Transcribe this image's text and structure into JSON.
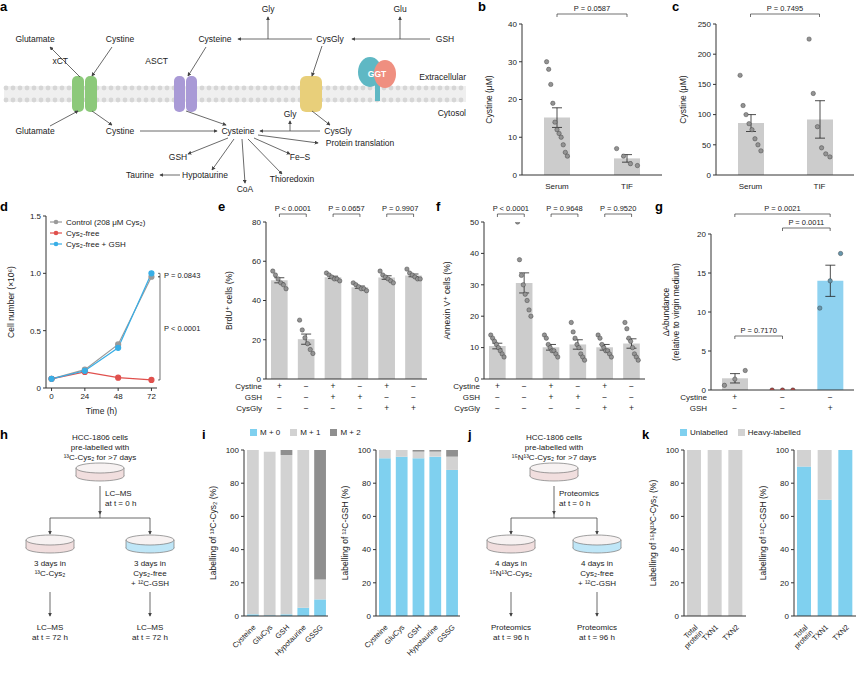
{
  "panel_letters": [
    "a",
    "b",
    "c",
    "d",
    "e",
    "f",
    "g",
    "h",
    "i",
    "j",
    "k"
  ],
  "diagrams": {
    "a": {
      "compartments": [
        "Extracellular",
        "Cytosol"
      ],
      "labels": [
        "Glutamate",
        "Cystine",
        "xCT",
        "Glutamate",
        "Cystine",
        "Cysteine",
        "ASCT",
        "Gly",
        "CysGly",
        "Glu",
        "GSH",
        "GGT",
        "Gly",
        "CysGly",
        "Cysteine",
        "GSH",
        "Hypotaurine",
        "Taurine",
        "CoA",
        "Thioredoxin",
        "Fe–S",
        "Protein translation"
      ]
    },
    "h": {
      "start": [
        "HCC-1806 cells",
        "pre-labelled with",
        "¹³C-Cys₂ for >7 days"
      ],
      "t0": [
        "LC–MS",
        "at t = 0 h"
      ],
      "left": [
        "3 days in",
        "¹³C-Cys₂"
      ],
      "right": [
        "3 days in",
        "Cys₂-free",
        "+ ¹²C-GSH"
      ],
      "end_left": [
        "LC–MS",
        "at t = 72 h"
      ],
      "end_right": [
        "LC–MS",
        "at t = 72 h"
      ]
    },
    "j": {
      "start": [
        "HCC-1806 cells",
        "pre-labelled with",
        "¹⁵N¹³C-Cys₂ for >7 days"
      ],
      "t0": [
        "Proteomics",
        "at t = 0 h"
      ],
      "left": [
        "4 days in",
        "¹⁵N¹³C-Cys₂"
      ],
      "right": [
        "4 days in",
        "Cys₂-free",
        "+ ¹²C-GSH"
      ],
      "end_left": [
        "Proteomics",
        "at t = 96 h"
      ],
      "end_right": [
        "Proteomics",
        "at t = 96 h"
      ]
    }
  },
  "chart_data": [
    {
      "type": "bar",
      "y_label": "Cystine (μM)",
      "categories": [
        "Serum",
        "TIF"
      ],
      "values": [
        15.2,
        4.4
      ],
      "errors": [
        2.6,
        1.0
      ],
      "points": [
        [
          30,
          28,
          24,
          19,
          14,
          12,
          11,
          10,
          8,
          6,
          5
        ],
        [
          7,
          5,
          3,
          2.5
        ]
      ],
      "color": "#cccccc",
      "ylim": [
        0,
        40
      ],
      "yticks": [
        0,
        10,
        20,
        30,
        40
      ],
      "annotations": [
        "P = 0.0587"
      ]
    },
    {
      "type": "bar",
      "y_label": "Cystine (μM)",
      "categories": [
        "Serum",
        "TIF"
      ],
      "values": [
        86,
        92
      ],
      "errors": [
        14,
        31
      ],
      "points": [
        [
          165,
          115,
          100,
          85,
          75,
          60,
          50,
          40
        ],
        [
          225,
          135,
          80,
          45,
          35,
          30
        ]
      ],
      "color": "#cccccc",
      "ylim": [
        0,
        250
      ],
      "yticks": [
        0,
        50,
        100,
        150,
        200,
        250
      ],
      "annotations": [
        "P = 0.7495"
      ]
    },
    {
      "type": "line",
      "x_label": "Time (h)",
      "y_label": "Cell number (×10⁶)",
      "x": [
        0,
        24,
        48,
        72
      ],
      "xlim": [
        -4,
        76
      ],
      "xticks": [
        0,
        24,
        48,
        72
      ],
      "ylim": [
        0,
        1.5
      ],
      "yticks": [
        0,
        0.5,
        {
          "value": 1,
          "label": "1.0"
        },
        1.5
      ],
      "series": [
        {
          "name": "Control (208 μM Cys₂)",
          "color": "#9a9a9a",
          "values": [
            0.08,
            0.16,
            0.38,
            0.97
          ]
        },
        {
          "name": "Cys₂-free",
          "color": "#e0504d",
          "values": [
            0.08,
            0.14,
            0.09,
            0.07
          ]
        },
        {
          "name": "Cys₂-free + GSH",
          "color": "#38aee6",
          "values": [
            0.08,
            0.15,
            0.35,
            1.0
          ]
        }
      ],
      "marker": "circle",
      "legend": "upper left",
      "annotations": [
        "P = 0.0843",
        "P < 0.0001"
      ]
    },
    {
      "type": "bar",
      "y_label": "BrdU⁺ cells (%)",
      "values": [
        50.3,
        20.3,
        51.8,
        46.8,
        51.7,
        52.8
      ],
      "errors": [
        1.3,
        2.6,
        0.6,
        0.6,
        0.9,
        0.7
      ],
      "points": [
        [
          55,
          53,
          51,
          49,
          48,
          46
        ],
        [
          30,
          25,
          21,
          18,
          15,
          13
        ],
        [
          54,
          53,
          52,
          51,
          51,
          50
        ],
        [
          49,
          48,
          47,
          46,
          46,
          45
        ],
        [
          55,
          53,
          52,
          51,
          50,
          49
        ],
        [
          56,
          54,
          53,
          52,
          51,
          51
        ]
      ],
      "color": "#cccccc",
      "ylim": [
        0,
        80
      ],
      "yticks": [
        0,
        20,
        40,
        60,
        80
      ],
      "conditions": {
        "rows": [
          "Cystine",
          "GSH",
          "CysGly"
        ],
        "values": [
          [
            "+",
            "−",
            "+",
            "−",
            "+",
            "−"
          ],
          [
            "−",
            "−",
            "+",
            "+",
            "−",
            "−"
          ],
          [
            "−",
            "−",
            "−",
            "−",
            "+",
            "+"
          ]
        ]
      },
      "annotations": [
        "P < 0.0001",
        "P = 0.0657",
        "P = 0.9907"
      ]
    },
    {
      "type": "bar",
      "y_label": "Annexin V⁺ cells (%)",
      "values": [
        10.5,
        30.6,
        10.1,
        11,
        10.1,
        11.3
      ],
      "errors": [
        0.9,
        3.2,
        0.9,
        1.5,
        0.9,
        1.5
      ],
      "points": [
        [
          14,
          13,
          12,
          11,
          10,
          9,
          8,
          7
        ],
        [
          50,
          38,
          33,
          30,
          27,
          25,
          22,
          20
        ],
        [
          14,
          13,
          11,
          10,
          9,
          9,
          8,
          7
        ],
        [
          18,
          15,
          13,
          11,
          10,
          8,
          7,
          6
        ],
        [
          14,
          13,
          11,
          10,
          9,
          9,
          8,
          7
        ],
        [
          18,
          16,
          13,
          12,
          10,
          8,
          7,
          6
        ]
      ],
      "color": "#cccccc",
      "ylim": [
        0,
        50
      ],
      "yticks": [
        0,
        10,
        20,
        30,
        40,
        50
      ],
      "conditions": {
        "rows": [
          "Cystine",
          "GSH",
          "CysGly"
        ],
        "values": [
          [
            "+",
            "−",
            "+",
            "−",
            "+",
            "−"
          ],
          [
            "−",
            "−",
            "+",
            "+",
            "−",
            "−"
          ],
          [
            "−",
            "−",
            "−",
            "−",
            "+",
            "+"
          ]
        ]
      },
      "annotations": [
        "P < 0.0001",
        "P = 0.9648",
        "P = 0.9520"
      ]
    },
    {
      "type": "bar",
      "y_label": "ΔAbundance (relative to virgin medium)",
      "values": [
        1.5,
        0,
        14
      ],
      "errors": [
        0.6,
        0,
        2.0
      ],
      "points": [
        [
          0.6,
          1.4,
          2.5
        ],
        [
          0,
          0,
          0
        ],
        [
          10.5,
          14,
          17.5
        ]
      ],
      "colors": [
        "#cccccc",
        "#e8605c",
        "#8fd2f0"
      ],
      "ylim": [
        0,
        20
      ],
      "yticks": [
        0,
        5,
        10,
        15,
        20
      ],
      "conditions": {
        "rows": [
          "Cystine",
          "GSH"
        ],
        "values": [
          [
            "+",
            "−",
            "−"
          ],
          [
            "−",
            "−",
            "+"
          ]
        ]
      },
      "annotations": [
        "P = 0.0021",
        "P = 0.0011",
        "P = 0.7170"
      ]
    },
    {
      "type": "bar",
      "stacked": true,
      "legend": "top",
      "y_label": "Labelling of ¹³C-Cys₂ (%)",
      "categories": [
        "Cysteine",
        "GluCys",
        "GSH",
        "Hypotaurine",
        "GSSG"
      ],
      "series": [
        {
          "name": "M + 0",
          "color": "#7fd0ef",
          "values": [
            1,
            0.5,
            1,
            5,
            10
          ]
        },
        {
          "name": "M + 1",
          "color": "#d2d2d2",
          "values": [
            99,
            98.5,
            96,
            95,
            12
          ]
        },
        {
          "name": "M + 2",
          "color": "#8f8f8f",
          "values": [
            0,
            0,
            3,
            0,
            78
          ]
        }
      ],
      "ylim": [
        0,
        100
      ],
      "yticks": [
        0,
        20,
        40,
        60,
        80,
        100
      ]
    },
    {
      "type": "bar",
      "stacked": true,
      "legend": "top",
      "y_label": "Labelling of ¹²C-GSH (%)",
      "categories": [
        "Cysteine",
        "GluCys",
        "GSH",
        "Hypotaurine",
        "GSSG"
      ],
      "series": [
        {
          "name": "M + 0",
          "color": "#7fd0ef",
          "values": [
            95,
            96,
            95,
            96,
            88
          ]
        },
        {
          "name": "M + 1",
          "color": "#d2d2d2",
          "values": [
            5,
            4,
            4,
            3,
            8
          ]
        },
        {
          "name": "M + 2",
          "color": "#8f8f8f",
          "values": [
            0,
            0,
            1,
            1,
            4
          ]
        }
      ],
      "ylim": [
        0,
        100
      ],
      "yticks": [
        0,
        20,
        40,
        60,
        80,
        100
      ]
    },
    {
      "type": "bar",
      "stacked": true,
      "legend": "top",
      "y_label": "Labelling of ¹⁵N¹³C-Cys₂ (%)",
      "categories": [
        "Total protein",
        "TXN1",
        "TXN2"
      ],
      "series": [
        {
          "name": "Unlabelled",
          "color": "#7fd0ef",
          "values": [
            0,
            0,
            0
          ]
        },
        {
          "name": "Heavy-labelled",
          "color": "#d2d2d2",
          "values": [
            100,
            100,
            100
          ]
        }
      ],
      "ylim": [
        0,
        100
      ],
      "yticks": [
        0,
        20,
        40,
        60,
        80,
        100
      ]
    },
    {
      "type": "bar",
      "stacked": true,
      "legend": "top",
      "y_label": "Labelling of ¹²C-GSH (%)",
      "categories": [
        "Total protein",
        "TXN1",
        "TXN2"
      ],
      "series": [
        {
          "name": "Unlabelled",
          "color": "#7fd0ef",
          "values": [
            90,
            70,
            100
          ]
        },
        {
          "name": "Heavy-labelled",
          "color": "#d2d2d2",
          "values": [
            10,
            30,
            0
          ]
        }
      ],
      "ylim": [
        0,
        100
      ],
      "yticks": [
        0,
        20,
        40,
        60,
        80,
        100
      ]
    }
  ]
}
